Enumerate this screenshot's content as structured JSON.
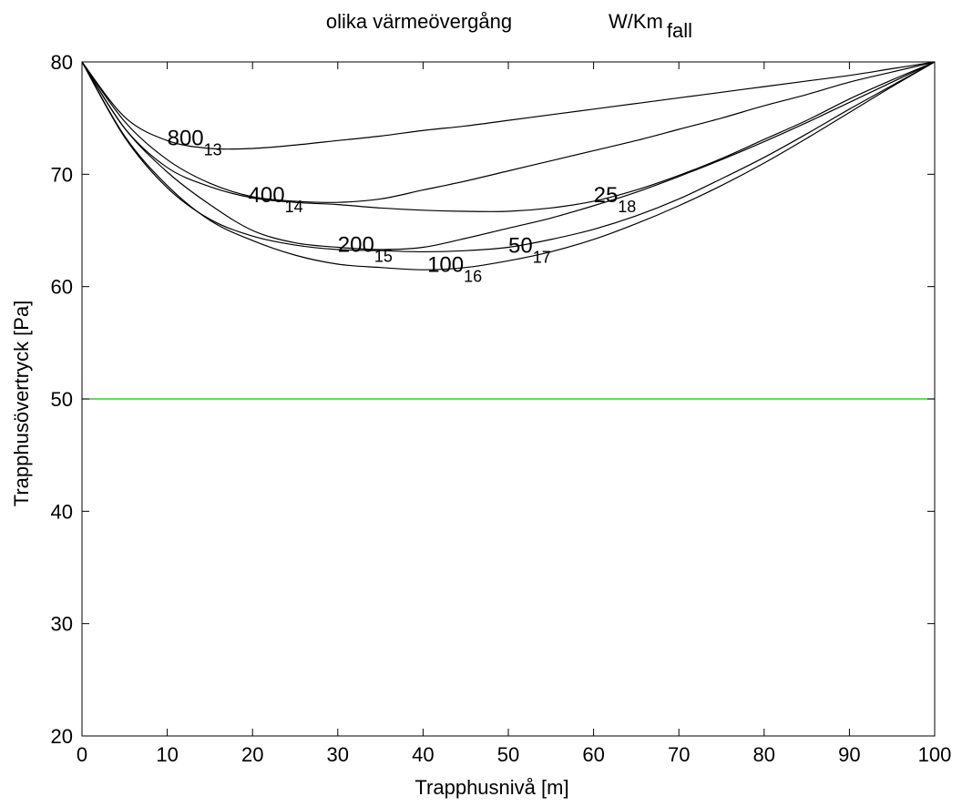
{
  "chart_data": {
    "type": "line",
    "title": {
      "main": "olika värmeövergång",
      "unit_base": "W/Km",
      "unit_sub": "fall"
    },
    "xlabel": "Trapphusnivå  [m]",
    "ylabel": "Trapphusövertryck  [Pa]",
    "xlim": [
      0,
      100
    ],
    "ylim": [
      20,
      80
    ],
    "xticks": [
      0,
      10,
      20,
      30,
      40,
      50,
      60,
      70,
      80,
      90,
      100
    ],
    "yticks": [
      20,
      30,
      40,
      50,
      60,
      70,
      80
    ],
    "grid": false,
    "legend": "none",
    "x": [
      0,
      5,
      10,
      15,
      20,
      25,
      30,
      35,
      40,
      45,
      50,
      55,
      60,
      65,
      70,
      75,
      80,
      85,
      90,
      95,
      100
    ],
    "series": [
      {
        "label": "800",
        "label_sub": "13",
        "color": "#000000",
        "label_at": [
          10,
          72.6
        ],
        "values": [
          80,
          75.1,
          73.0,
          72.3,
          72.3,
          72.6,
          73.0,
          73.4,
          73.9,
          74.3,
          74.8,
          75.3,
          75.8,
          76.3,
          76.8,
          77.3,
          77.8,
          78.3,
          78.8,
          79.4,
          80
        ]
      },
      {
        "label": "400",
        "label_sub": "14",
        "color": "#000000",
        "label_at": [
          19.5,
          67.5
        ],
        "values": [
          80,
          74.7,
          71.3,
          69.2,
          68.0,
          67.6,
          67.5,
          67.8,
          68.6,
          69.4,
          70.3,
          71.2,
          72.1,
          73.0,
          74.0,
          75.0,
          76.1,
          77.1,
          78.2,
          79.1,
          80
        ]
      },
      {
        "label": "200",
        "label_sub": "15",
        "color": "#000000",
        "label_at": [
          30,
          63.1
        ],
        "values": [
          80,
          74.1,
          70.2,
          67.3,
          65.0,
          63.9,
          63.5,
          63.3,
          63.5,
          64.3,
          65.2,
          66.1,
          67.2,
          68.4,
          69.8,
          71.3,
          72.9,
          74.6,
          76.4,
          78.2,
          80
        ]
      },
      {
        "label": "100",
        "label_sub": "16",
        "color": "#000000",
        "label_at": [
          40.5,
          61.3
        ],
        "values": [
          80,
          73.4,
          69.0,
          65.9,
          64.1,
          62.8,
          62.0,
          61.7,
          61.5,
          61.7,
          62.3,
          63.1,
          64.2,
          65.6,
          67.2,
          69.0,
          71.0,
          73.2,
          75.5,
          77.8,
          80
        ]
      },
      {
        "label": "50",
        "label_sub": "17",
        "color": "#000000",
        "label_at": [
          50,
          63.0
        ],
        "values": [
          80,
          73.3,
          68.8,
          66.0,
          64.5,
          63.7,
          63.3,
          63.2,
          63.1,
          63.2,
          63.5,
          64.2,
          65.1,
          66.3,
          67.8,
          69.6,
          71.5,
          73.6,
          75.8,
          77.9,
          80
        ]
      },
      {
        "label": "25",
        "label_sub": "18",
        "color": "#000000",
        "label_at": [
          60,
          67.5
        ],
        "values": [
          80,
          74.1,
          70.6,
          68.9,
          67.9,
          67.5,
          67.3,
          67.0,
          66.8,
          66.7,
          66.7,
          67.0,
          67.6,
          68.6,
          69.9,
          71.4,
          73.1,
          74.8,
          76.7,
          78.4,
          80
        ]
      },
      {
        "label": "",
        "label_sub": "",
        "color": "#00c800",
        "values": [
          50,
          50,
          50,
          50,
          50,
          50,
          50,
          50,
          50,
          50,
          50,
          50,
          50,
          50,
          50,
          50,
          50,
          50,
          50,
          50,
          50
        ]
      }
    ]
  }
}
